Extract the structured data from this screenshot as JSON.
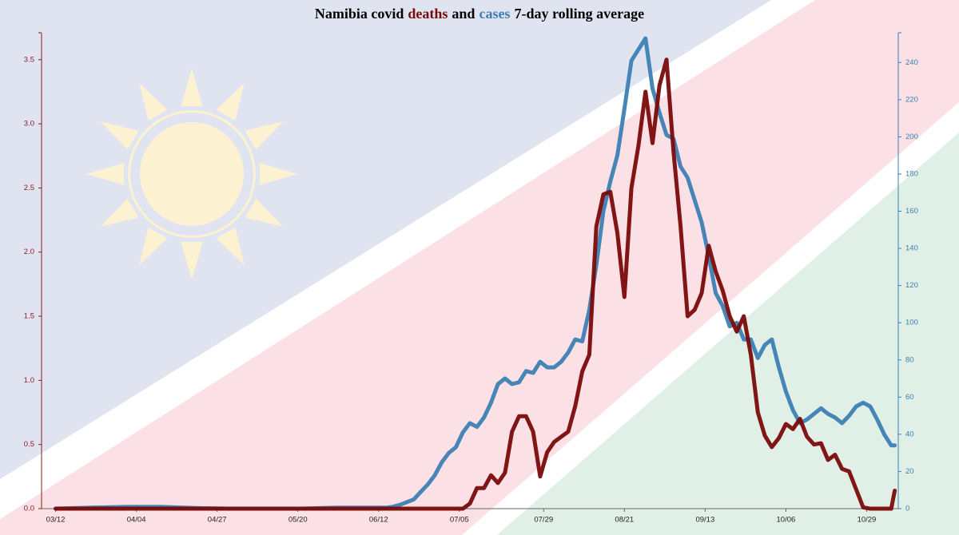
{
  "chart_data": {
    "type": "line",
    "title": [
      "Namibia covid",
      "and",
      "7-day rolling average"
    ],
    "x": [
      "03/12",
      "03/22",
      "04/01",
      "04/11",
      "04/21",
      "05/01",
      "05/11",
      "05/21",
      "05/31",
      "06/10",
      "06/14",
      "06/16",
      "06/18",
      "06/20",
      "06/22",
      "06/24",
      "06/26",
      "06/28",
      "06/30",
      "07/02",
      "07/04",
      "07/06",
      "07/08",
      "07/10",
      "07/12",
      "07/14",
      "07/16",
      "07/18",
      "07/20",
      "07/22",
      "07/24",
      "07/26",
      "07/28",
      "07/30",
      "08/01",
      "08/03",
      "08/05",
      "08/07",
      "08/09",
      "08/11",
      "08/13",
      "08/15",
      "08/17",
      "08/19",
      "08/21",
      "08/23",
      "08/25",
      "08/27",
      "08/29",
      "08/31",
      "09/02",
      "09/04",
      "09/06",
      "09/08",
      "09/10",
      "09/12",
      "09/14",
      "09/16",
      "09/18",
      "09/20",
      "09/22",
      "09/24",
      "09/26",
      "09/28",
      "09/30",
      "10/02",
      "10/04",
      "10/06",
      "10/08",
      "10/10",
      "10/12",
      "10/14",
      "10/16",
      "10/18",
      "10/20",
      "10/22",
      "10/24",
      "10/26",
      "10/28",
      "10/30",
      "11/01",
      "11/03",
      "11/05",
      "11/06"
    ],
    "xlim": [
      "03/08",
      "11/07"
    ],
    "xticks": [
      "03/12",
      "04/04",
      "04/27",
      "05/20",
      "06/12",
      "07/05",
      "07/29",
      "08/21",
      "09/13",
      "10/06",
      "10/29"
    ],
    "series": [
      {
        "name": "cases",
        "color": "#3d7fb3",
        "axis": "y2",
        "values": [
          0,
          0.5,
          1,
          1,
          0.3,
          0,
          0,
          0,
          0.5,
          0.5,
          0.5,
          1,
          2,
          3.5,
          5,
          9,
          13,
          18,
          25,
          30,
          33,
          41,
          46,
          44,
          49,
          57,
          67,
          70,
          67,
          68,
          74,
          73,
          79,
          76,
          76,
          79,
          84,
          91,
          90,
          107,
          131,
          160,
          176,
          190,
          215,
          241,
          247,
          253,
          226,
          213,
          201,
          199,
          184,
          178,
          166,
          154,
          136,
          116,
          109,
          98,
          100,
          91,
          91,
          81,
          88,
          91,
          76,
          63,
          53,
          46,
          48,
          51,
          54,
          51,
          49,
          46,
          50,
          55,
          57,
          55,
          48,
          40,
          34,
          34
        ]
      },
      {
        "name": "deaths",
        "color": "#7a0a0a",
        "values": [
          0,
          0,
          0,
          0,
          0,
          0,
          0,
          0,
          0,
          0,
          0,
          0,
          0,
          0,
          0,
          0,
          0,
          0,
          0,
          0,
          0,
          0,
          0.04,
          0.16,
          0.16,
          0.26,
          0.2,
          0.28,
          0.6,
          0.72,
          0.72,
          0.6,
          0.25,
          0.44,
          0.52,
          0.56,
          0.6,
          0.8,
          1.07,
          1.2,
          2.2,
          2.45,
          2.47,
          2.15,
          1.65,
          2.5,
          2.83,
          3.25,
          2.85,
          3.3,
          3.5,
          2.78,
          2.2,
          1.5,
          1.55,
          1.68,
          2.05,
          1.85,
          1.7,
          1.5,
          1.38,
          1.5,
          1.2,
          0.75,
          0.57,
          0.48,
          0.55,
          0.66,
          0.62,
          0.7,
          0.56,
          0.5,
          0.51,
          0.38,
          0.42,
          0.31,
          0.29,
          0.15,
          0.01,
          0,
          0,
          0,
          0,
          0.14
        ]
      }
    ],
    "ylim": [
      0,
      3.71
    ],
    "yticks": [
      {
        "value": 0,
        "label": "0.0"
      },
      0.5,
      {
        "value": 1,
        "label": "1.0"
      },
      1.5,
      {
        "value": 2,
        "label": "2.0"
      },
      2.5,
      {
        "value": 3,
        "label": "3.0"
      },
      3.5
    ],
    "y2lim": [
      0,
      256
    ],
    "y2ticks": [
      0,
      20,
      40,
      60,
      80,
      100,
      120,
      140,
      160,
      180,
      200,
      220,
      240
    ]
  }
}
